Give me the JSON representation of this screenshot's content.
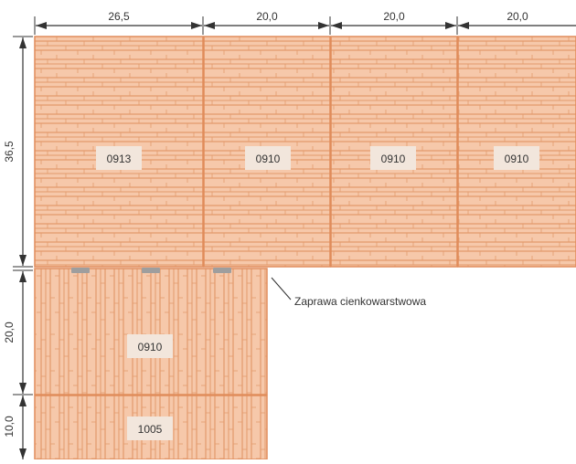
{
  "colors": {
    "brick_fill": "#f6c8aa",
    "brick_line": "#e39a6c",
    "brick_outline": "#e08c5b",
    "label_bg": "#f2e6dc",
    "dim_line": "#333333",
    "mortar": "#9e9e9e"
  },
  "dimensions": {
    "top": [
      "26,5",
      "20,0",
      "20,0",
      "20,0"
    ],
    "left": [
      "36,5",
      "20,0",
      "10,0"
    ]
  },
  "blocks": {
    "top_row": [
      "0913",
      "0910",
      "0910",
      "0910"
    ],
    "bottom_left": [
      "0910",
      "1005"
    ]
  },
  "annotation": "Zaprawa cienkowarstwowa",
  "icons": {
    "dimension_arrow": "arrowhead-icon",
    "mortar_marker": "mortar-pad-icon"
  }
}
